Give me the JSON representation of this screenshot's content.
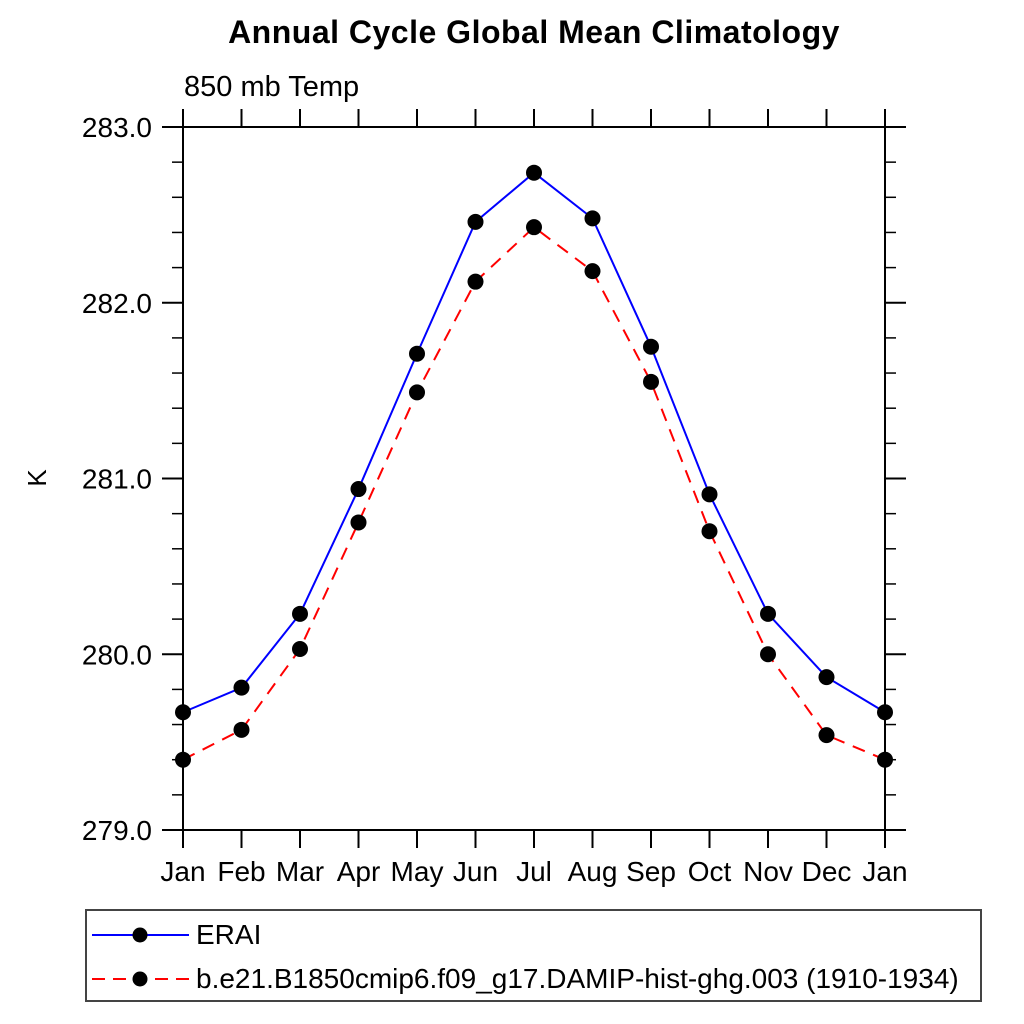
{
  "chart_data": {
    "type": "line",
    "title": "Annual Cycle Global Mean Climatology",
    "subtitle": "850 mb Temp",
    "ylabel": "K",
    "categories": [
      "Jan",
      "Feb",
      "Mar",
      "Apr",
      "May",
      "Jun",
      "Jul",
      "Aug",
      "Sep",
      "Oct",
      "Nov",
      "Dec",
      "Jan"
    ],
    "ylim": [
      279.0,
      283.0
    ],
    "ytick_major_interval": 1.0,
    "ytick_minor_interval": 0.2,
    "ytick_labels": [
      "279.0",
      "280.0",
      "281.0",
      "282.0",
      "283.0"
    ],
    "grid": false,
    "legend_position": "bottom-left-box",
    "series": [
      {
        "name": "ERAI",
        "color": "#0000ff",
        "line_style": "solid",
        "marker": "filled-circle",
        "marker_color": "#000000",
        "values": [
          279.67,
          279.81,
          280.23,
          280.94,
          281.71,
          282.46,
          282.74,
          282.48,
          281.75,
          280.91,
          280.23,
          279.87,
          279.67
        ]
      },
      {
        "name": "b.e21.B1850cmip6.f09_g17.DAMIP-hist-ghg.003 (1910-1934)",
        "color": "#ff0000",
        "line_style": "dashed",
        "marker": "filled-circle",
        "marker_color": "#000000",
        "values": [
          279.4,
          279.57,
          280.03,
          280.75,
          281.49,
          282.12,
          282.43,
          282.18,
          281.55,
          280.7,
          280.0,
          279.54,
          279.4
        ]
      }
    ]
  },
  "colors": {
    "axis": "#000000",
    "text": "#000000",
    "legend_border": "#444444",
    "background": "#ffffff"
  }
}
